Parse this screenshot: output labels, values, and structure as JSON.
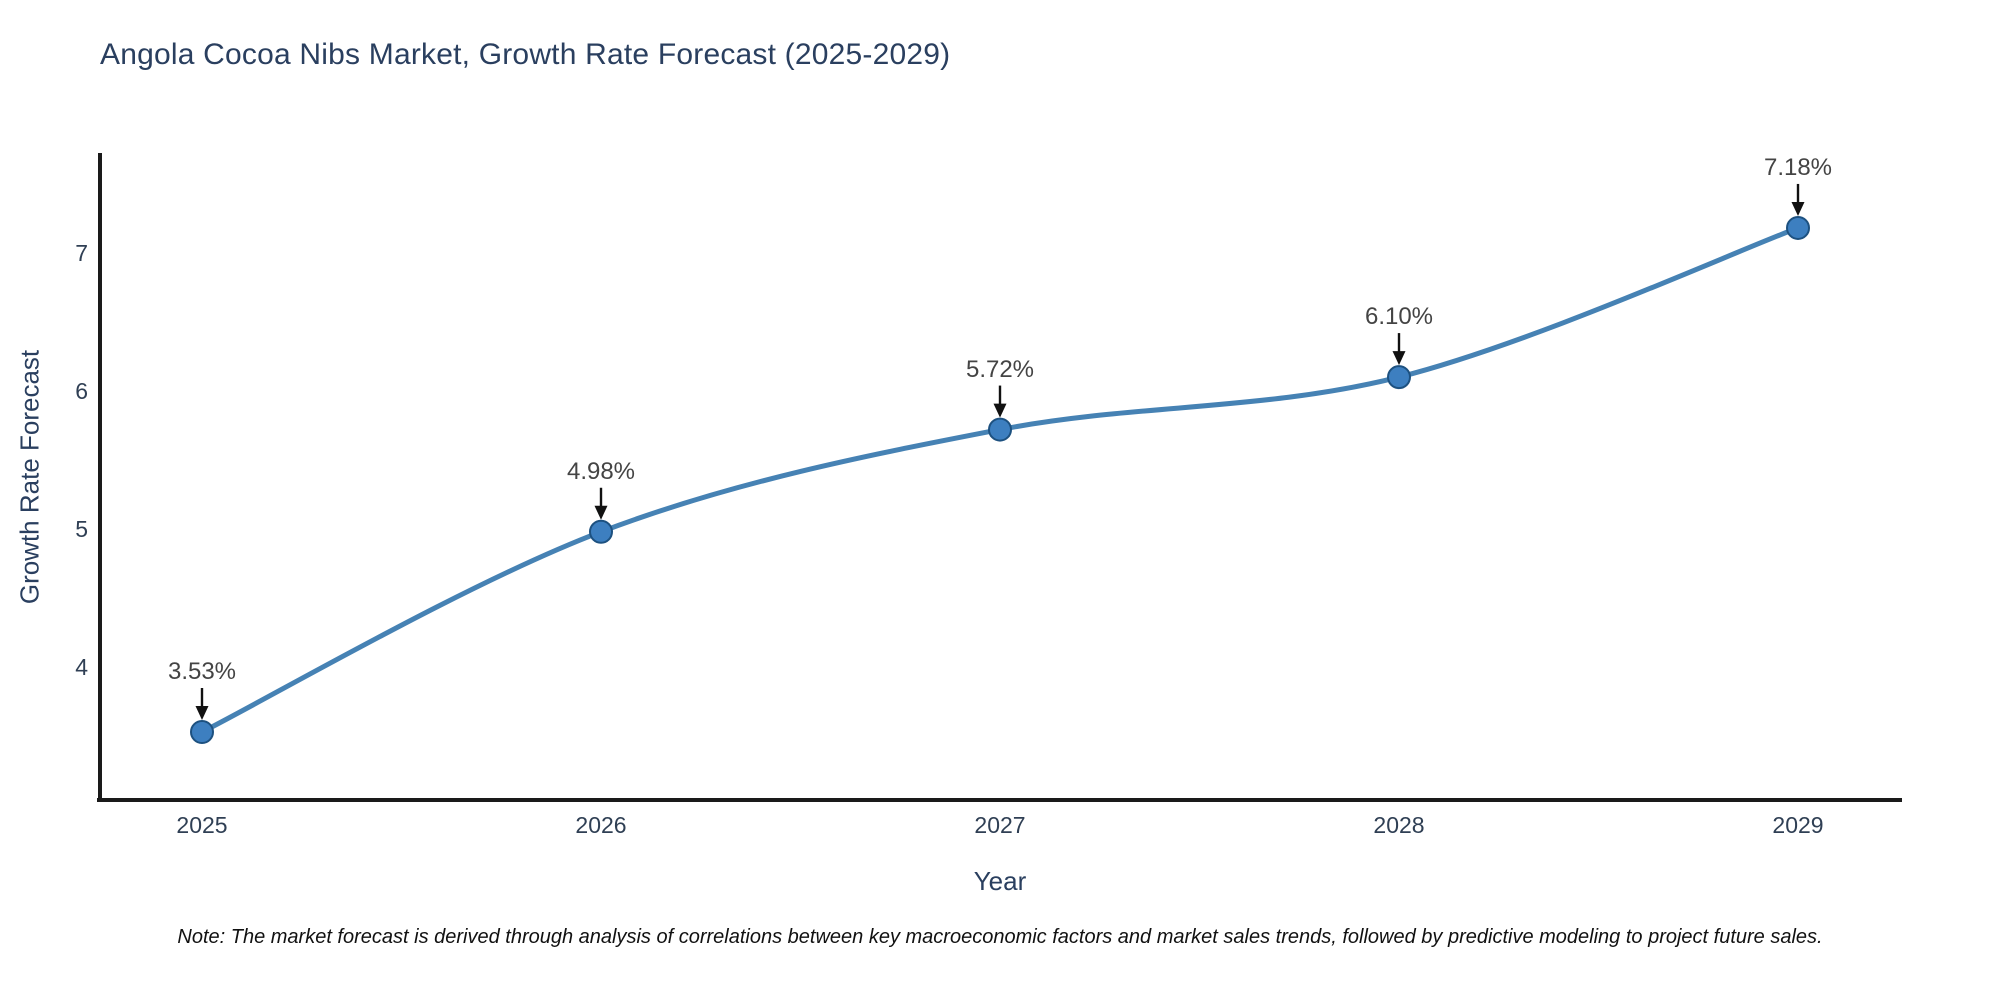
{
  "chart_data": {
    "type": "line",
    "title": "Angola Cocoa Nibs Market, Growth Rate Forecast (2025-2029)",
    "xlabel": "Year",
    "ylabel": "Growth Rate Forecast",
    "x": [
      2025,
      2026,
      2027,
      2028,
      2029
    ],
    "values": [
      3.53,
      4.98,
      5.72,
      6.1,
      7.18
    ],
    "point_labels": [
      "3.53%",
      "4.98%",
      "5.72%",
      "6.10%",
      "7.18%"
    ],
    "xtick_labels": [
      "2025",
      "2026",
      "2027",
      "2028",
      "2029"
    ],
    "ytick_labels": [
      "7",
      "6",
      "5",
      "4"
    ],
    "ylim": [
      3.0,
      7.7
    ],
    "grid": false,
    "line_shape": "spline",
    "legend": "none",
    "colors": {
      "line": "#4682b4",
      "marker_fill": "#3d7fc0",
      "marker_edge": "#1d5180",
      "axis": "#1a1a1a",
      "arrow": "#111111",
      "title_text": "#2a3f5f",
      "annotation_text": "#444444"
    }
  },
  "note": {
    "text": "Note: The market forecast is derived through analysis of correlations between key macroeconomic factors and market sales trends, followed by predictive modeling to project future sales."
  }
}
